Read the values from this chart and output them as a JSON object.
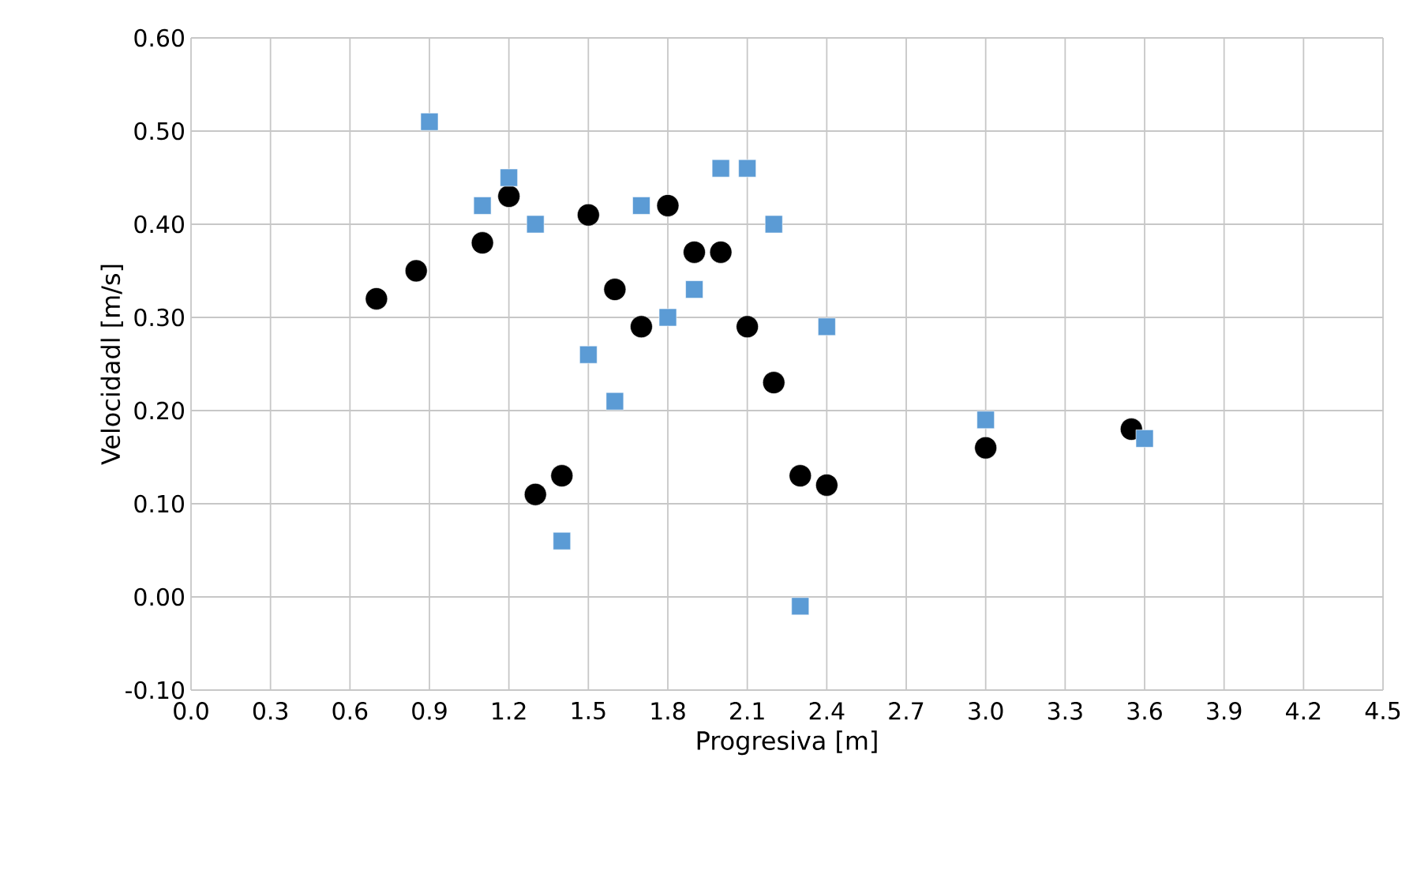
{
  "chart_data": {
    "type": "scatter",
    "xlabel": "Progresiva [m]",
    "ylabel": "Velocidadl [m/s]",
    "series": [
      {
        "color": "#000000",
        "marker": "circle",
        "x": [
          0.7,
          0.85,
          1.1,
          1.2,
          1.3,
          1.4,
          1.5,
          1.6,
          1.7,
          1.8,
          1.9,
          2.0,
          2.1,
          2.2,
          2.3,
          2.4,
          3.0,
          3.55
        ],
        "values": [
          0.32,
          0.35,
          0.38,
          0.43,
          0.11,
          0.13,
          0.41,
          0.33,
          0.29,
          0.42,
          0.37,
          0.37,
          0.29,
          0.23,
          0.13,
          0.12,
          0.16,
          0.18
        ]
      },
      {
        "color": "#5b9bd5",
        "marker": "square",
        "x": [
          0.9,
          1.1,
          1.2,
          1.3,
          1.4,
          1.5,
          1.6,
          1.7,
          1.8,
          1.9,
          2.0,
          2.1,
          2.2,
          2.3,
          2.4,
          3.0,
          3.6
        ],
        "values": [
          0.51,
          0.42,
          0.45,
          0.4,
          0.06,
          0.26,
          0.21,
          0.42,
          0.3,
          0.33,
          0.46,
          0.46,
          0.4,
          -0.01,
          0.29,
          0.19,
          0.17
        ]
      }
    ],
    "xlim": [
      0,
      4.5
    ],
    "xticks": [
      {
        "value": 0,
        "label": "0.0"
      },
      {
        "value": 0.3,
        "label": "0.3"
      },
      {
        "value": 0.6,
        "label": "0.6"
      },
      {
        "value": 0.9,
        "label": "0.9"
      },
      {
        "value": 1.2,
        "label": "1.2"
      },
      {
        "value": 1.5,
        "label": "1.5"
      },
      {
        "value": 1.8,
        "label": "1.8"
      },
      {
        "value": 2.1,
        "label": "2.1"
      },
      {
        "value": 2.4,
        "label": "2.4"
      },
      {
        "value": 2.7,
        "label": "2.7"
      },
      {
        "value": 3.0,
        "label": "3.0"
      },
      {
        "value": 3.3,
        "label": "3.3"
      },
      {
        "value": 3.6,
        "label": "3.6"
      },
      {
        "value": 3.9,
        "label": "3.9"
      },
      {
        "value": 4.2,
        "label": "4.2"
      },
      {
        "value": 4.5,
        "label": "4.5"
      }
    ],
    "ylim": [
      -0.1,
      0.6
    ],
    "yticks": [
      {
        "value": -0.1,
        "label": "-0.10"
      },
      {
        "value": 0,
        "label": "0.00"
      },
      {
        "value": 0.1,
        "label": "0.10"
      },
      {
        "value": 0.2,
        "label": "0.20"
      },
      {
        "value": 0.3,
        "label": "0.30"
      },
      {
        "value": 0.4,
        "label": "0.40"
      },
      {
        "value": 0.5,
        "label": "0.50"
      },
      {
        "value": 0.6,
        "label": "0.60"
      }
    ],
    "grid": true
  }
}
